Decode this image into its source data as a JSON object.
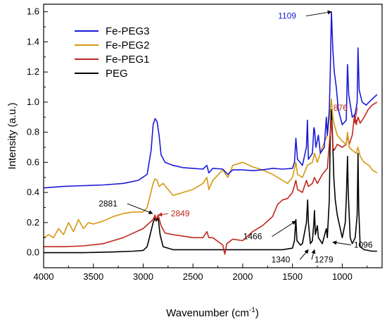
{
  "chart_data": {
    "type": "line",
    "title": "",
    "xlabel": "Wavenumber (cm",
    "xlabel_sup": "-1",
    "xlabel_tail": ")",
    "ylabel": "Intensity (a.u.)",
    "xlim": [
      4000,
      600
    ],
    "x_reversed": true,
    "ylim": [
      -0.1,
      1.65
    ],
    "x_ticks": [
      4000,
      3500,
      3000,
      2500,
      2000,
      1500,
      1000
    ],
    "x_tick_labels": [
      "4000",
      "3500",
      "3000",
      "2500",
      "2000",
      "1500",
      "1000"
    ],
    "y_ticks": [
      0.0,
      0.2,
      0.4,
      0.6,
      0.8,
      1.0,
      1.2,
      1.4,
      1.6
    ],
    "y_tick_labels": [
      "0.0",
      "0.2",
      "0.4",
      "0.6",
      "0.8",
      "1.0",
      "1.2",
      "1.4",
      "1.6"
    ],
    "grid": false,
    "legend_position": "top-left",
    "series": [
      {
        "name": "Fe-PEG3",
        "color": "#1a1adb",
        "points": [
          [
            4000,
            0.43
          ],
          [
            3800,
            0.44
          ],
          [
            3600,
            0.445
          ],
          [
            3400,
            0.45
          ],
          [
            3200,
            0.46
          ],
          [
            3050,
            0.48
          ],
          [
            2960,
            0.52
          ],
          [
            2920,
            0.68
          ],
          [
            2900,
            0.85
          ],
          [
            2880,
            0.89
          ],
          [
            2860,
            0.87
          ],
          [
            2840,
            0.78
          ],
          [
            2820,
            0.65
          ],
          [
            2780,
            0.6
          ],
          [
            2700,
            0.58
          ],
          [
            2600,
            0.565
          ],
          [
            2500,
            0.56
          ],
          [
            2400,
            0.555
          ],
          [
            2360,
            0.58
          ],
          [
            2340,
            0.53
          ],
          [
            2300,
            0.56
          ],
          [
            2200,
            0.555
          ],
          [
            2150,
            0.52
          ],
          [
            2100,
            0.55
          ],
          [
            2000,
            0.55
          ],
          [
            1900,
            0.545
          ],
          [
            1800,
            0.55
          ],
          [
            1700,
            0.56
          ],
          [
            1600,
            0.555
          ],
          [
            1500,
            0.56
          ],
          [
            1480,
            0.6
          ],
          [
            1466,
            0.76
          ],
          [
            1450,
            0.62
          ],
          [
            1400,
            0.58
          ],
          [
            1360,
            0.7
          ],
          [
            1350,
            0.88
          ],
          [
            1340,
            0.62
          ],
          [
            1300,
            0.66
          ],
          [
            1285,
            0.83
          ],
          [
            1279,
            0.82
          ],
          [
            1265,
            0.7
          ],
          [
            1240,
            0.78
          ],
          [
            1220,
            0.66
          ],
          [
            1180,
            0.7
          ],
          [
            1160,
            0.9
          ],
          [
            1150,
            0.78
          ],
          [
            1130,
            0.95
          ],
          [
            1120,
            1.2
          ],
          [
            1109,
            1.6
          ],
          [
            1095,
            1.35
          ],
          [
            1080,
            1.2
          ],
          [
            1060,
            1.1
          ],
          [
            1040,
            0.95
          ],
          [
            1000,
            0.85
          ],
          [
            960,
            0.88
          ],
          [
            947,
            1.25
          ],
          [
            935,
            1.05
          ],
          [
            900,
            0.9
          ],
          [
            870,
            0.92
          ],
          [
            850,
            1.0
          ],
          [
            842,
            1.36
          ],
          [
            830,
            1.08
          ],
          [
            800,
            1.0
          ],
          [
            760,
            0.98
          ],
          [
            700,
            1.02
          ],
          [
            650,
            1.05
          ]
        ]
      },
      {
        "name": "Fe-PEG2",
        "color": "#d49a0f",
        "points": [
          [
            4000,
            0.1
          ],
          [
            3950,
            0.12
          ],
          [
            3900,
            0.1
          ],
          [
            3850,
            0.16
          ],
          [
            3800,
            0.12
          ],
          [
            3750,
            0.2
          ],
          [
            3700,
            0.14
          ],
          [
            3650,
            0.22
          ],
          [
            3600,
            0.16
          ],
          [
            3550,
            0.2
          ],
          [
            3500,
            0.19
          ],
          [
            3400,
            0.21
          ],
          [
            3300,
            0.24
          ],
          [
            3200,
            0.26
          ],
          [
            3100,
            0.27
          ],
          [
            3000,
            0.27
          ],
          [
            2960,
            0.3
          ],
          [
            2930,
            0.38
          ],
          [
            2900,
            0.46
          ],
          [
            2881,
            0.49
          ],
          [
            2860,
            0.48
          ],
          [
            2840,
            0.44
          ],
          [
            2800,
            0.46
          ],
          [
            2700,
            0.38
          ],
          [
            2600,
            0.4
          ],
          [
            2500,
            0.42
          ],
          [
            2400,
            0.46
          ],
          [
            2360,
            0.5
          ],
          [
            2340,
            0.42
          ],
          [
            2300,
            0.48
          ],
          [
            2200,
            0.55
          ],
          [
            2150,
            0.5
          ],
          [
            2100,
            0.58
          ],
          [
            2000,
            0.6
          ],
          [
            1900,
            0.57
          ],
          [
            1800,
            0.55
          ],
          [
            1700,
            0.52
          ],
          [
            1600,
            0.48
          ],
          [
            1550,
            0.46
          ],
          [
            1500,
            0.5
          ],
          [
            1466,
            0.6
          ],
          [
            1450,
            0.52
          ],
          [
            1400,
            0.5
          ],
          [
            1350,
            0.58
          ],
          [
            1300,
            0.6
          ],
          [
            1279,
            0.66
          ],
          [
            1250,
            0.6
          ],
          [
            1200,
            0.7
          ],
          [
            1150,
            0.78
          ],
          [
            1120,
            0.95
          ],
          [
            1109,
            1.02
          ],
          [
            1095,
            0.9
          ],
          [
            1080,
            0.85
          ],
          [
            1050,
            0.78
          ],
          [
            1000,
            0.74
          ],
          [
            960,
            0.72
          ],
          [
            947,
            0.8
          ],
          [
            930,
            0.7
          ],
          [
            900,
            0.68
          ],
          [
            860,
            0.66
          ],
          [
            842,
            0.7
          ],
          [
            820,
            0.64
          ],
          [
            780,
            0.6
          ],
          [
            730,
            0.58
          ],
          [
            700,
            0.55
          ],
          [
            650,
            0.53
          ]
        ]
      },
      {
        "name": "Fe-PEG1",
        "color": "#c0281e",
        "points": [
          [
            4000,
            0.04
          ],
          [
            3800,
            0.04
          ],
          [
            3600,
            0.045
          ],
          [
            3400,
            0.06
          ],
          [
            3300,
            0.08
          ],
          [
            3200,
            0.1
          ],
          [
            3100,
            0.13
          ],
          [
            3000,
            0.16
          ],
          [
            2950,
            0.19
          ],
          [
            2900,
            0.22
          ],
          [
            2881,
            0.25
          ],
          [
            2870,
            0.22
          ],
          [
            2849,
            0.25
          ],
          [
            2820,
            0.18
          ],
          [
            2780,
            0.13
          ],
          [
            2700,
            0.12
          ],
          [
            2600,
            0.11
          ],
          [
            2500,
            0.1
          ],
          [
            2400,
            0.1
          ],
          [
            2360,
            0.14
          ],
          [
            2340,
            0.1
          ],
          [
            2300,
            0.1
          ],
          [
            2200,
            0.05
          ],
          [
            2180,
            -0.01
          ],
          [
            2160,
            0.06
          ],
          [
            2100,
            0.09
          ],
          [
            2000,
            0.08
          ],
          [
            1900,
            0.14
          ],
          [
            1800,
            0.18
          ],
          [
            1700,
            0.24
          ],
          [
            1650,
            0.32
          ],
          [
            1600,
            0.35
          ],
          [
            1550,
            0.36
          ],
          [
            1500,
            0.4
          ],
          [
            1466,
            0.48
          ],
          [
            1450,
            0.42
          ],
          [
            1400,
            0.4
          ],
          [
            1360,
            0.48
          ],
          [
            1340,
            0.44
          ],
          [
            1300,
            0.46
          ],
          [
            1279,
            0.5
          ],
          [
            1250,
            0.46
          ],
          [
            1200,
            0.52
          ],
          [
            1150,
            0.56
          ],
          [
            1120,
            0.8
          ],
          [
            1109,
            0.88
          ],
          [
            1095,
            0.7
          ],
          [
            1080,
            0.68
          ],
          [
            1050,
            0.72
          ],
          [
            1000,
            0.7
          ],
          [
            960,
            0.72
          ],
          [
            947,
            0.78
          ],
          [
            930,
            0.72
          ],
          [
            900,
            0.78
          ],
          [
            876,
            0.92
          ],
          [
            860,
            0.85
          ],
          [
            842,
            0.9
          ],
          [
            820,
            0.86
          ],
          [
            780,
            0.9
          ],
          [
            740,
            0.95
          ],
          [
            700,
            0.98
          ],
          [
            650,
            1.0
          ]
        ]
      },
      {
        "name": "PEG",
        "color": "#000000",
        "points": [
          [
            4000,
            0.0
          ],
          [
            3600,
            0.0
          ],
          [
            3300,
            0.005
          ],
          [
            3100,
            0.01
          ],
          [
            3000,
            0.015
          ],
          [
            2960,
            0.04
          ],
          [
            2930,
            0.12
          ],
          [
            2900,
            0.2
          ],
          [
            2881,
            0.23
          ],
          [
            2870,
            0.21
          ],
          [
            2849,
            0.23
          ],
          [
            2830,
            0.12
          ],
          [
            2800,
            0.04
          ],
          [
            2700,
            0.02
          ],
          [
            2600,
            0.02
          ],
          [
            2500,
            0.02
          ],
          [
            2400,
            0.02
          ],
          [
            2300,
            0.02
          ],
          [
            2200,
            0.02
          ],
          [
            2100,
            0.02
          ],
          [
            2000,
            0.02
          ],
          [
            1900,
            0.02
          ],
          [
            1800,
            0.02
          ],
          [
            1700,
            0.02
          ],
          [
            1600,
            0.02
          ],
          [
            1500,
            0.03
          ],
          [
            1480,
            0.08
          ],
          [
            1466,
            0.22
          ],
          [
            1455,
            0.08
          ],
          [
            1420,
            0.05
          ],
          [
            1400,
            0.06
          ],
          [
            1360,
            0.2
          ],
          [
            1348,
            0.35
          ],
          [
            1340,
            0.2
          ],
          [
            1320,
            0.06
          ],
          [
            1300,
            0.08
          ],
          [
            1285,
            0.2
          ],
          [
            1279,
            0.28
          ],
          [
            1270,
            0.12
          ],
          [
            1250,
            0.18
          ],
          [
            1240,
            0.1
          ],
          [
            1200,
            0.06
          ],
          [
            1160,
            0.16
          ],
          [
            1150,
            0.1
          ],
          [
            1130,
            0.35
          ],
          [
            1120,
            0.8
          ],
          [
            1109,
            0.95
          ],
          [
            1096,
            0.75
          ],
          [
            1085,
            0.5
          ],
          [
            1070,
            0.35
          ],
          [
            1050,
            0.25
          ],
          [
            1000,
            0.1
          ],
          [
            970,
            0.2
          ],
          [
            960,
            0.35
          ],
          [
            947,
            0.64
          ],
          [
            940,
            0.4
          ],
          [
            920,
            0.1
          ],
          [
            900,
            0.06
          ],
          [
            870,
            0.1
          ],
          [
            850,
            0.25
          ],
          [
            842,
            0.66
          ],
          [
            835,
            0.3
          ],
          [
            820,
            0.04
          ],
          [
            780,
            0.02
          ],
          [
            700,
            0.01
          ],
          [
            650,
            0.01
          ]
        ]
      }
    ],
    "annotations": [
      {
        "text": "1109",
        "x": 1109,
        "y": 1.6,
        "color": "#1a1adb",
        "dx": -50,
        "dy": 10
      },
      {
        "text": "876",
        "x": 876,
        "y": 0.86,
        "color": "#c0281e",
        "dx": -10,
        "dy": -18
      },
      {
        "text": "2881",
        "x": 2905,
        "y": 0.26,
        "color": "#000000",
        "dx": -50,
        "dy": -10
      },
      {
        "text": "2849",
        "x": 2849,
        "y": 0.25,
        "color": "#c0281e",
        "dx": 18,
        "dy": 2
      },
      {
        "text": "1466",
        "x": 1466,
        "y": 0.21,
        "color": "#000000",
        "dx": -48,
        "dy": 26
      },
      {
        "text": "1340",
        "x": 1340,
        "y": 0.02,
        "color": "#000000",
        "dx": -26,
        "dy": 18
      },
      {
        "text": "1279",
        "x": 1279,
        "y": 0.02,
        "color": "#000000",
        "dx": 0,
        "dy": 18
      },
      {
        "text": "1096",
        "x": 1096,
        "y": 0.07,
        "color": "#000000",
        "dx": 30,
        "dy": 8
      }
    ]
  }
}
